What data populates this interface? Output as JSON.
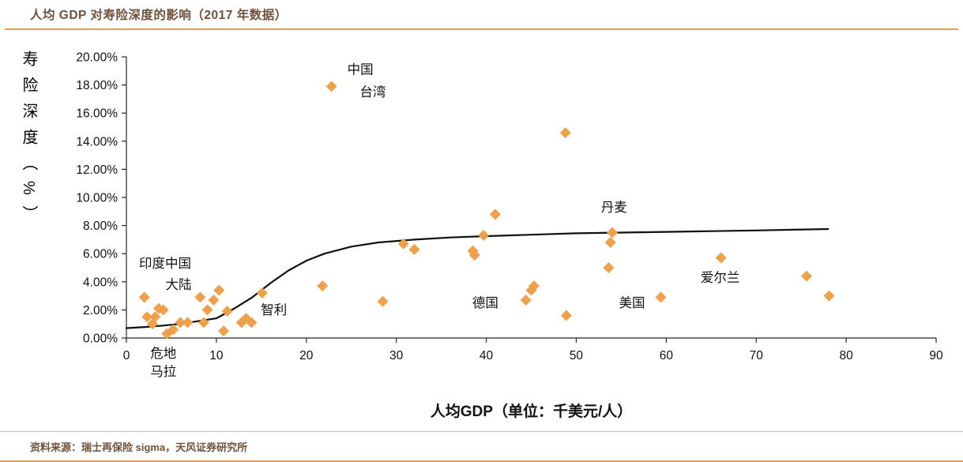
{
  "header": {
    "title": "人均 GDP 对寿险深度的影响（2017 年数据）"
  },
  "footer": {
    "source": "资料来源：瑞士再保险 sigma，天风证券研究所"
  },
  "colors": {
    "marker": "#EFA04A",
    "accent_rule": "#EC9A51",
    "title_text": "#6E523C",
    "curve": "#111111"
  },
  "chart_data": {
    "type": "scatter",
    "title": "人均 GDP 对寿险深度的影响（2017 年数据）",
    "xlabel": "人均GDP（单位：千美元/人）",
    "ylabel": "寿险深度（%）",
    "xlim": [
      0,
      90
    ],
    "ylim": [
      0,
      20
    ],
    "grid": false,
    "legend": "none",
    "x_ticks": [
      0,
      10,
      20,
      30,
      40,
      50,
      60,
      70,
      80,
      90
    ],
    "y_ticks": [
      {
        "value": 0,
        "label": "0.00%"
      },
      {
        "value": 2,
        "label": "2.00%"
      },
      {
        "value": 4,
        "label": "4.00%"
      },
      {
        "value": 6,
        "label": "6.00%"
      },
      {
        "value": 8,
        "label": "8.00%"
      },
      {
        "value": 10,
        "label": "10.00%"
      },
      {
        "value": 12,
        "label": "12.00%"
      },
      {
        "value": 14,
        "label": "14.00%"
      },
      {
        "value": 16,
        "label": "16.00%"
      },
      {
        "value": 18,
        "label": "18.00%"
      },
      {
        "value": 20,
        "label": "20.00%"
      }
    ],
    "points": [
      [
        2.0,
        2.9
      ],
      [
        2.3,
        1.5
      ],
      [
        3.2,
        1.5
      ],
      [
        2.9,
        1.0
      ],
      [
        3.6,
        2.1
      ],
      [
        4.1,
        2.0
      ],
      [
        4.5,
        0.3
      ],
      [
        5.2,
        0.6
      ],
      [
        6.0,
        1.1
      ],
      [
        6.8,
        1.1
      ],
      [
        8.2,
        2.9
      ],
      [
        8.6,
        1.1
      ],
      [
        9.0,
        2.0
      ],
      [
        9.7,
        2.7
      ],
      [
        10.3,
        3.4
      ],
      [
        10.8,
        0.5
      ],
      [
        11.2,
        1.9
      ],
      [
        12.8,
        1.1
      ],
      [
        13.3,
        1.4
      ],
      [
        13.9,
        1.1
      ],
      [
        15.1,
        3.2
      ],
      [
        21.8,
        3.7
      ],
      [
        22.8,
        17.9
      ],
      [
        28.5,
        2.6
      ],
      [
        30.8,
        6.7
      ],
      [
        32.0,
        6.3
      ],
      [
        38.5,
        6.2
      ],
      [
        38.7,
        5.9
      ],
      [
        39.7,
        7.3
      ],
      [
        41.0,
        8.8
      ],
      [
        44.4,
        2.7
      ],
      [
        45.0,
        3.4
      ],
      [
        45.3,
        3.7
      ],
      [
        48.8,
        14.6
      ],
      [
        48.9,
        1.6
      ],
      [
        54.0,
        7.5
      ],
      [
        53.8,
        6.8
      ],
      [
        53.6,
        5.0
      ],
      [
        59.4,
        2.9
      ],
      [
        66.1,
        5.7
      ],
      [
        75.6,
        4.4
      ],
      [
        78.1,
        3.0
      ]
    ],
    "trend": [
      [
        0,
        0.7
      ],
      [
        2,
        0.78
      ],
      [
        4,
        0.88
      ],
      [
        6,
        1.0
      ],
      [
        8,
        1.2
      ],
      [
        10,
        1.4
      ],
      [
        12,
        2.1
      ],
      [
        14,
        2.9
      ],
      [
        16,
        3.9
      ],
      [
        18,
        4.8
      ],
      [
        20,
        5.5
      ],
      [
        22,
        6.0
      ],
      [
        25,
        6.5
      ],
      [
        28,
        6.8
      ],
      [
        32,
        7.0
      ],
      [
        36,
        7.15
      ],
      [
        40,
        7.25
      ],
      [
        45,
        7.35
      ],
      [
        50,
        7.45
      ],
      [
        55,
        7.5
      ],
      [
        60,
        7.55
      ],
      [
        65,
        7.6
      ],
      [
        70,
        7.65
      ],
      [
        74,
        7.7
      ],
      [
        78,
        7.75
      ]
    ],
    "labels": [
      {
        "text": "中国",
        "x": 26.0,
        "y": 19.1
      },
      {
        "text": "台湾",
        "x": 27.4,
        "y": 17.5
      },
      {
        "text": "丹麦",
        "x": 54.2,
        "y": 9.3
      },
      {
        "text": "印度中国",
        "x": 4.3,
        "y": 5.3
      },
      {
        "text": "大陆",
        "x": 5.8,
        "y": 3.8
      },
      {
        "text": "危地",
        "x": 4.1,
        "y": -1.1
      },
      {
        "text": "马拉",
        "x": 4.1,
        "y": -2.4
      },
      {
        "text": "智利",
        "x": 16.4,
        "y": 2.0
      },
      {
        "text": "德国",
        "x": 39.9,
        "y": 2.5
      },
      {
        "text": "美国",
        "x": 56.2,
        "y": 2.5
      },
      {
        "text": "爱尔兰",
        "x": 66.0,
        "y": 4.3
      }
    ]
  }
}
